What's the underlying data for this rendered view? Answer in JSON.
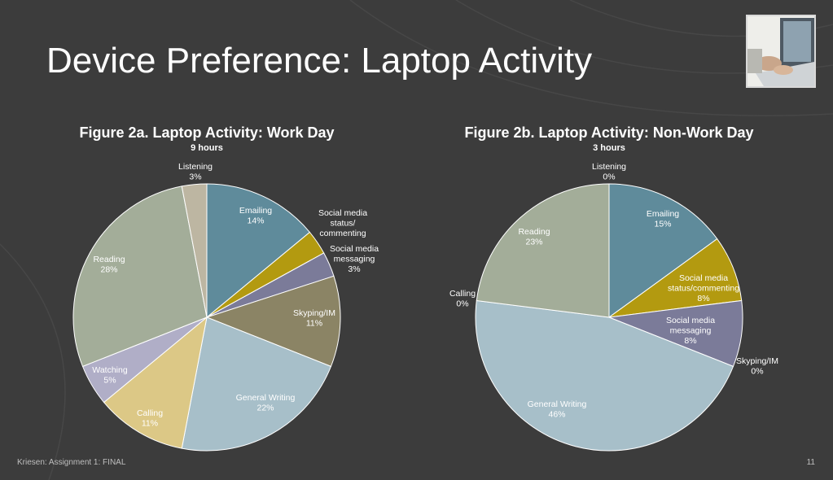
{
  "slide": {
    "title": "Device Preference: Laptop Activity",
    "footer_left": "Kriesen: Assignment 1: FINAL",
    "page_number": "11",
    "background_color": "#3c3c3c"
  },
  "chart_data": [
    {
      "type": "pie",
      "title": "Figure 2a. Laptop Activity: Work Day",
      "subtitle": "9 hours",
      "slices": [
        {
          "label": "Emailing",
          "pct_label": "14%",
          "value": 14,
          "color": "#5f8b9b",
          "label_color": "#ffffff"
        },
        {
          "label": "Social media status/ commenting",
          "pct_label": "",
          "value": 3,
          "color": "#b39a10",
          "label_color": "#ffffff"
        },
        {
          "label": "Social media messaging",
          "pct_label": "3%",
          "value": 3,
          "color": "#7b7b99",
          "label_color": "#ffffff"
        },
        {
          "label": "Skyping/IM",
          "pct_label": "11%",
          "value": 11,
          "color": "#8b8465",
          "label_color": "#ffffff"
        },
        {
          "label": "General Writing",
          "pct_label": "22%",
          "value": 22,
          "color": "#a7bfc9",
          "label_color": "#ffffff"
        },
        {
          "label": "Calling",
          "pct_label": "11%",
          "value": 11,
          "color": "#dcc886",
          "label_color": "#ffffff"
        },
        {
          "label": "Watching",
          "pct_label": "5%",
          "value": 5,
          "color": "#b0aec7",
          "label_color": "#ffffff"
        },
        {
          "label": "Reading",
          "pct_label": "28%",
          "value": 28,
          "color": "#a3ad99",
          "label_color": "#ffffff"
        },
        {
          "label": "Listening",
          "pct_label": "3%",
          "value": 3,
          "color": "#bdb6a2",
          "label_color": "#ffffff"
        }
      ]
    },
    {
      "type": "pie",
      "title": "Figure 2b. Laptop Activity: Non-Work Day",
      "subtitle": "3 hours",
      "slices": [
        {
          "label": "Emailing",
          "pct_label": "15%",
          "value": 15,
          "color": "#5f8b9b",
          "label_color": "#ffffff"
        },
        {
          "label": "Social media status/commenting",
          "pct_label": "8%",
          "value": 8,
          "color": "#b39a10",
          "label_color": "#ffffff"
        },
        {
          "label": "Social media messaging",
          "pct_label": "8%",
          "value": 8,
          "color": "#7b7b99",
          "label_color": "#ffffff"
        },
        {
          "label": "Skyping/IM",
          "pct_label": "0%",
          "value": 0,
          "color": "#8b8465",
          "label_color": "#ffffff"
        },
        {
          "label": "General Writing",
          "pct_label": "46%",
          "value": 46,
          "color": "#a7bfc9",
          "label_color": "#ffffff"
        },
        {
          "label": "Calling",
          "pct_label": "0%",
          "value": 0,
          "color": "#dcc886",
          "label_color": "#ffffff"
        },
        {
          "label": "Reading",
          "pct_label": "23%",
          "value": 23,
          "color": "#a3ad99",
          "label_color": "#ffffff"
        },
        {
          "label": "Listening",
          "pct_label": "0%",
          "value": 0,
          "color": "#bdb6a2",
          "label_color": "#ffffff"
        }
      ]
    }
  ]
}
